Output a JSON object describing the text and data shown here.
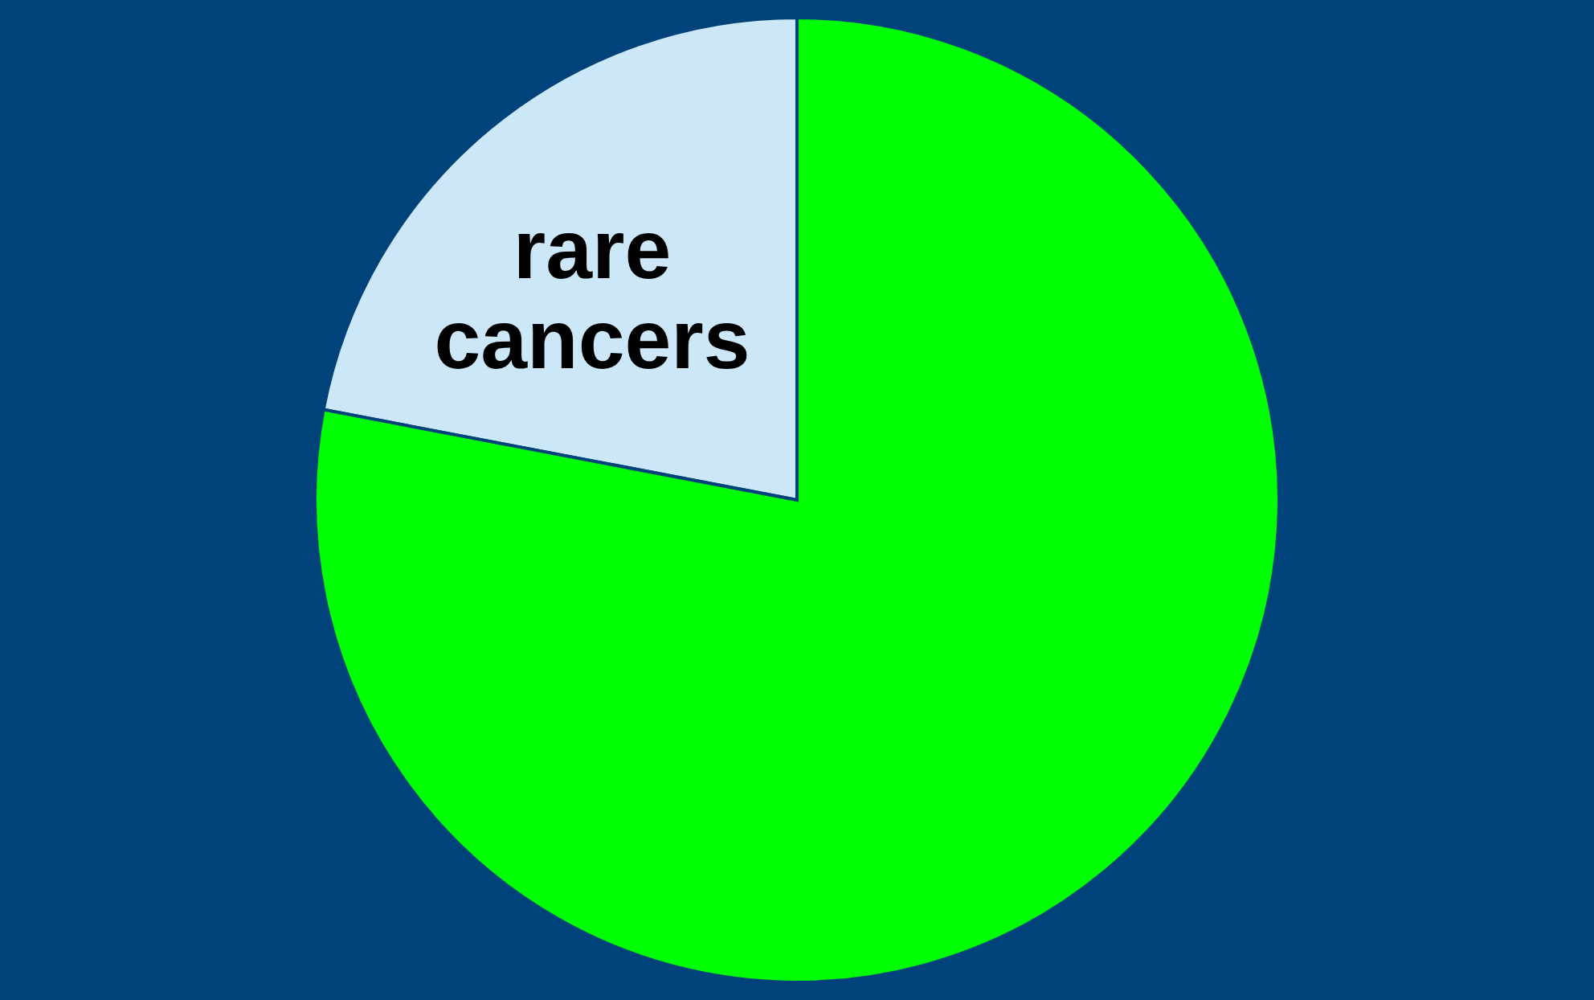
{
  "chart_data": {
    "type": "pie",
    "categories": [
      "rare cancers",
      null
    ],
    "values": [
      22,
      78
    ],
    "colors": [
      "#cce8f8",
      "#00ff00"
    ]
  }
}
